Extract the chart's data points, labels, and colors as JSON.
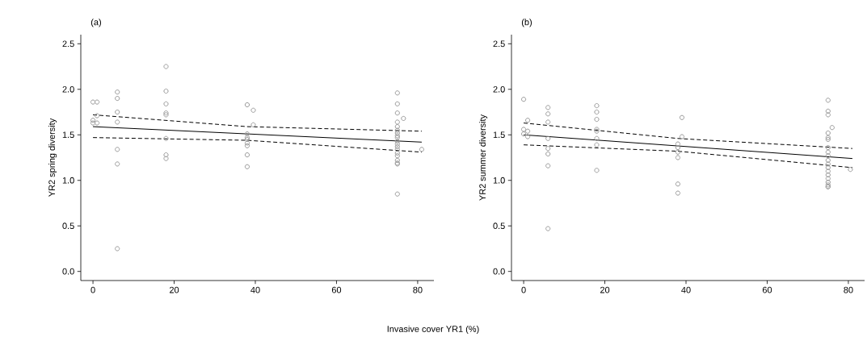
{
  "chart_data": [
    {
      "type": "scatter",
      "title": "(a)",
      "xlabel": "Invasive cover YR1 (%)",
      "ylabel": "YR2 spring diversity",
      "xlim": [
        -3,
        84
      ],
      "ylim": [
        -0.1,
        2.6
      ],
      "xticks": [
        0,
        20,
        40,
        60,
        80
      ],
      "yticks": [
        {
          "value": 0,
          "label": "0.0"
        },
        {
          "value": 0.5,
          "label": "0.5"
        },
        {
          "value": 1,
          "label": "1.0"
        },
        {
          "value": 1.5,
          "label": "1.5"
        },
        {
          "value": 2,
          "label": "2.0"
        },
        {
          "value": 2.5,
          "label": "2.5"
        }
      ],
      "grid": false,
      "series": [
        {
          "marker": "circle",
          "color": "#999999",
          "x": [
            0,
            1,
            1,
            0,
            0,
            1,
            6,
            6,
            6,
            6,
            6,
            6,
            6,
            18,
            18,
            18,
            18,
            18,
            18,
            18,
            18,
            38,
            39.5,
            39.5,
            38,
            38,
            38,
            38,
            38,
            38,
            38,
            75,
            75,
            75,
            75,
            75,
            75,
            75,
            75,
            75,
            75,
            75,
            75,
            75,
            75,
            75,
            75,
            75,
            75,
            75,
            76.5,
            81
          ],
          "values": [
            1.86,
            1.86,
            1.71,
            1.66,
            1.63,
            1.63,
            1.97,
            1.9,
            1.75,
            1.64,
            1.34,
            1.18,
            0.25,
            2.25,
            1.98,
            1.84,
            1.74,
            1.72,
            1.46,
            1.28,
            1.24,
            1.83,
            1.77,
            1.61,
            1.51,
            1.47,
            1.45,
            1.41,
            1.38,
            1.28,
            1.15,
            1.96,
            1.84,
            1.74,
            1.64,
            1.59,
            1.55,
            1.52,
            1.49,
            1.47,
            1.43,
            1.4,
            1.37,
            1.34,
            1.3,
            1.27,
            1.22,
            1.19,
            1.18,
            0.85,
            1.68,
            1.34
          ]
        },
        {
          "type": "line",
          "line_style": "solid",
          "color": "#000000",
          "x": [
            0,
            81
          ],
          "values": [
            1.59,
            1.42
          ]
        },
        {
          "type": "line",
          "line_style": "dashed",
          "color": "#000000",
          "x": [
            0,
            38,
            81
          ],
          "values": [
            1.72,
            1.59,
            1.54
          ]
        },
        {
          "type": "line",
          "line_style": "dashed",
          "color": "#000000",
          "x": [
            0,
            38,
            81
          ],
          "values": [
            1.47,
            1.44,
            1.31
          ]
        }
      ]
    },
    {
      "type": "scatter",
      "title": "(b)",
      "ylabel": "YR2 summer diversity",
      "xlim": [
        -3,
        84
      ],
      "ylim": [
        -0.1,
        2.6
      ],
      "xticks": [
        0,
        20,
        40,
        60,
        80
      ],
      "yticks": [
        {
          "value": 0,
          "label": "0.0"
        },
        {
          "value": 0.5,
          "label": "0.5"
        },
        {
          "value": 1,
          "label": "1.0"
        },
        {
          "value": 1.5,
          "label": "1.5"
        },
        {
          "value": 2,
          "label": "2.0"
        },
        {
          "value": 2.5,
          "label": "2.5"
        }
      ],
      "grid": false,
      "series": [
        {
          "marker": "circle",
          "color": "#999999",
          "x": [
            0,
            0,
            0,
            1,
            1,
            1,
            6,
            6,
            6,
            6,
            6,
            6,
            6,
            6,
            18,
            18,
            18,
            18,
            18,
            18,
            18,
            18,
            38,
            38,
            38,
            38,
            38,
            38,
            39,
            39,
            75,
            75,
            75,
            75,
            75,
            75,
            75,
            75,
            75,
            75,
            75,
            75,
            75,
            75,
            75,
            75,
            75,
            75,
            75,
            76,
            80.5
          ],
          "values": [
            1.89,
            1.56,
            1.51,
            1.66,
            1.54,
            1.48,
            1.8,
            1.73,
            1.64,
            1.46,
            1.35,
            1.29,
            1.16,
            0.47,
            1.82,
            1.75,
            1.67,
            1.56,
            1.54,
            1.46,
            1.39,
            1.11,
            1.4,
            1.36,
            1.31,
            1.25,
            0.96,
            0.86,
            1.69,
            1.48,
            1.88,
            1.76,
            1.72,
            1.52,
            1.47,
            1.45,
            1.36,
            1.31,
            1.27,
            1.22,
            1.18,
            1.14,
            1.1,
            1.06,
            1.02,
            0.98,
            0.95,
            0.93,
            0.93,
            1.58,
            1.12
          ]
        },
        {
          "type": "line",
          "line_style": "solid",
          "color": "#000000",
          "x": [
            0,
            81
          ],
          "values": [
            1.5,
            1.24
          ]
        },
        {
          "type": "line",
          "line_style": "dashed",
          "color": "#000000",
          "x": [
            0,
            38,
            81
          ],
          "values": [
            1.63,
            1.46,
            1.35
          ]
        },
        {
          "type": "line",
          "line_style": "dashed",
          "color": "#000000",
          "x": [
            0,
            38,
            81
          ],
          "values": [
            1.39,
            1.32,
            1.14
          ]
        }
      ]
    }
  ]
}
